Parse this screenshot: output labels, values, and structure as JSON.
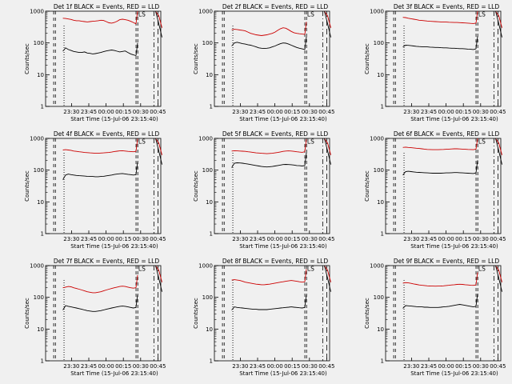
{
  "chart_data": [
    {
      "type": "line",
      "title": "Det 1f BLACK = Events, RED = LLD",
      "xlabel": "Start Time (15-Jul-06 23:15:40)",
      "ylabel": "Counts/sec",
      "x_ticks": [
        "23:30",
        "23:45",
        "00:00",
        "00:15",
        "00:30",
        "00:45"
      ],
      "y_ticks": [
        "1",
        "10",
        "100",
        "1000"
      ],
      "ylim": [
        1,
        1000
      ],
      "yscale": "log",
      "annotation": "LS",
      "series": [
        {
          "color": "#cc0000",
          "values": [
            600,
            590,
            570,
            550,
            520,
            500,
            500,
            480,
            470,
            460,
            470,
            480,
            490,
            500,
            520,
            510,
            470,
            430,
            420,
            440,
            480,
            540,
            560,
            540,
            520,
            480,
            440,
            400
          ]
        },
        {
          "color": "#000000",
          "values": [
            55,
            70,
            62,
            58,
            54,
            52,
            50,
            50,
            52,
            48,
            47,
            45,
            46,
            48,
            50,
            53,
            56,
            58,
            60,
            58,
            55,
            52,
            54,
            56,
            50,
            45,
            42,
            40
          ]
        }
      ]
    },
    {
      "type": "line",
      "title": "Det 2f BLACK = Events, RED = LLD",
      "xlabel": "Start Time (15-Jul-06 23:15:40)",
      "ylabel": "Counts/sec",
      "x_ticks": [
        "23:30",
        "23:45",
        "00:00",
        "00:15",
        "00:30",
        "00:45"
      ],
      "y_ticks": [
        "1",
        "10",
        "100",
        "1000"
      ],
      "ylim": [
        1,
        1000
      ],
      "yscale": "log",
      "annotation": "LS",
      "series": [
        {
          "color": "#cc0000",
          "values": [
            260,
            270,
            265,
            255,
            250,
            240,
            220,
            200,
            190,
            180,
            175,
            170,
            175,
            180,
            190,
            200,
            220,
            250,
            280,
            300,
            290,
            260,
            230,
            210,
            200,
            195,
            190,
            185
          ]
        },
        {
          "color": "#000000",
          "values": [
            80,
            100,
            105,
            100,
            95,
            92,
            88,
            85,
            80,
            75,
            70,
            68,
            67,
            68,
            70,
            75,
            80,
            88,
            95,
            100,
            98,
            92,
            85,
            78,
            72,
            68,
            65,
            62
          ]
        }
      ]
    },
    {
      "type": "line",
      "title": "Det 3f BLACK = Events, RED = LLD",
      "xlabel": "Start Time (15-Jul-06 23:15:40)",
      "ylabel": "Counts/sec",
      "x_ticks": [
        "23:30",
        "23:45",
        "00:00",
        "00:15",
        "00:30",
        "00:45"
      ],
      "y_ticks": [
        "1",
        "10",
        "100",
        "1000"
      ],
      "ylim": [
        1,
        1000
      ],
      "yscale": "log",
      "annotation": "LS",
      "series": [
        {
          "color": "#cc0000",
          "values": [
            640,
            630,
            600,
            580,
            560,
            540,
            520,
            510,
            500,
            490,
            480,
            475,
            470,
            465,
            460,
            460,
            455,
            450,
            445,
            440,
            440,
            435,
            430,
            425,
            420,
            415,
            410,
            420
          ]
        },
        {
          "color": "#000000",
          "values": [
            75,
            85,
            84,
            82,
            80,
            78,
            77,
            76,
            75,
            75,
            74,
            73,
            72,
            72,
            71,
            70,
            70,
            69,
            68,
            68,
            67,
            66,
            66,
            65,
            64,
            63,
            62,
            65
          ]
        }
      ]
    },
    {
      "type": "line",
      "title": "Det 4f BLACK = Events, RED = LLD",
      "xlabel": "Start Time (15-Jul-06 23:15:40)",
      "ylabel": "Counts/sec",
      "x_ticks": [
        "23:30",
        "23:45",
        "00:00",
        "00:15",
        "00:30",
        "00:45"
      ],
      "y_ticks": [
        "1",
        "10",
        "100",
        "1000"
      ],
      "ylim": [
        1,
        1000
      ],
      "yscale": "log",
      "annotation": "LS",
      "series": [
        {
          "color": "#cc0000",
          "values": [
            430,
            440,
            430,
            420,
            400,
            390,
            380,
            370,
            360,
            355,
            350,
            345,
            340,
            340,
            345,
            350,
            355,
            360,
            370,
            385,
            395,
            405,
            410,
            400,
            390,
            385,
            380,
            390
          ]
        },
        {
          "color": "#000000",
          "values": [
            50,
            70,
            75,
            72,
            70,
            68,
            67,
            66,
            65,
            64,
            63,
            63,
            62,
            62,
            63,
            64,
            66,
            68,
            70,
            73,
            75,
            77,
            78,
            76,
            74,
            72,
            70,
            72
          ]
        }
      ]
    },
    {
      "type": "line",
      "title": "Det 5f BLACK = Events, RED = LLD",
      "xlabel": "Start Time (15-Jul-06 23:15:40)",
      "ylabel": "Counts/sec",
      "x_ticks": [
        "23:30",
        "23:45",
        "00:00",
        "00:15",
        "00:30",
        "00:45"
      ],
      "y_ticks": [
        "1",
        "10",
        "100",
        "1000"
      ],
      "ylim": [
        1,
        1000
      ],
      "yscale": "log",
      "annotation": "LS",
      "series": [
        {
          "color": "#cc0000",
          "values": [
            400,
            410,
            405,
            400,
            395,
            390,
            380,
            370,
            360,
            350,
            345,
            340,
            335,
            330,
            335,
            340,
            350,
            360,
            375,
            390,
            400,
            405,
            400,
            390,
            380,
            370,
            365,
            380
          ]
        },
        {
          "color": "#000000",
          "values": [
            120,
            165,
            170,
            168,
            165,
            160,
            155,
            150,
            145,
            140,
            135,
            130,
            128,
            126,
            128,
            130,
            135,
            140,
            145,
            150,
            152,
            150,
            148,
            145,
            140,
            138,
            135,
            140
          ]
        }
      ]
    },
    {
      "type": "line",
      "title": "Det 6f BLACK = Events, RED = LLD",
      "xlabel": "Start Time (15-Jul-06 23:15:40)",
      "ylabel": "Counts/sec",
      "x_ticks": [
        "23:30",
        "23:45",
        "00:00",
        "00:15",
        "00:30",
        "00:45"
      ],
      "y_ticks": [
        "1",
        "10",
        "100",
        "1000"
      ],
      "ylim": [
        1,
        1000
      ],
      "yscale": "log",
      "annotation": "LS",
      "series": [
        {
          "color": "#cc0000",
          "values": [
            520,
            530,
            520,
            510,
            500,
            490,
            480,
            470,
            460,
            450,
            445,
            440,
            440,
            440,
            445,
            450,
            455,
            460,
            465,
            470,
            470,
            465,
            460,
            455,
            450,
            445,
            440,
            460
          ]
        },
        {
          "color": "#000000",
          "values": [
            70,
            90,
            92,
            90,
            88,
            86,
            85,
            84,
            83,
            82,
            81,
            80,
            80,
            80,
            80,
            81,
            82,
            82,
            83,
            84,
            84,
            83,
            82,
            81,
            80,
            79,
            78,
            82
          ]
        }
      ]
    },
    {
      "type": "line",
      "title": "Det 7f BLACK = Events, RED = LLD",
      "xlabel": "Start Time (15-Jul-06 23:15:40)",
      "ylabel": "Counts/sec",
      "x_ticks": [
        "23:30",
        "23:45",
        "00:00",
        "00:15",
        "00:30",
        "00:45"
      ],
      "y_ticks": [
        "1",
        "10",
        "100",
        "1000"
      ],
      "ylim": [
        1,
        1000
      ],
      "yscale": "log",
      "annotation": "LS",
      "series": [
        {
          "color": "#cc0000",
          "values": [
            200,
            210,
            220,
            215,
            200,
            190,
            180,
            170,
            160,
            150,
            145,
            140,
            140,
            145,
            150,
            160,
            170,
            180,
            190,
            200,
            210,
            220,
            225,
            220,
            210,
            200,
            195,
            200
          ]
        },
        {
          "color": "#000000",
          "values": [
            40,
            55,
            52,
            50,
            48,
            46,
            44,
            42,
            40,
            38,
            37,
            36,
            36,
            37,
            38,
            40,
            42,
            44,
            46,
            48,
            50,
            52,
            53,
            52,
            50,
            48,
            46,
            48
          ]
        }
      ]
    },
    {
      "type": "line",
      "title": "Det 8f BLACK = Events, RED = LLD",
      "xlabel": "Start Time (15-Jul-06 23:15:40)",
      "ylabel": "Counts/sec",
      "x_ticks": [
        "23:30",
        "23:45",
        "00:00",
        "00:15",
        "00:30",
        "00:45"
      ],
      "y_ticks": [
        "1",
        "10",
        "100",
        "1000"
      ],
      "ylim": [
        1,
        1000
      ],
      "yscale": "log",
      "annotation": "LS",
      "series": [
        {
          "color": "#cc0000",
          "values": [
            350,
            360,
            350,
            340,
            320,
            300,
            290,
            280,
            270,
            260,
            255,
            250,
            250,
            255,
            260,
            270,
            280,
            290,
            300,
            310,
            320,
            330,
            340,
            330,
            320,
            310,
            300,
            310
          ]
        },
        {
          "color": "#000000",
          "values": [
            40,
            50,
            48,
            47,
            46,
            45,
            44,
            43,
            42,
            42,
            41,
            41,
            41,
            41,
            42,
            43,
            44,
            45,
            46,
            47,
            48,
            49,
            50,
            49,
            48,
            47,
            46,
            48
          ]
        }
      ]
    },
    {
      "type": "line",
      "title": "Det 9f BLACK = Events, RED = LLD",
      "xlabel": "Start Time (15-Jul-06 23:15:40)",
      "ylabel": "Counts/sec",
      "x_ticks": [
        "23:30",
        "23:45",
        "00:00",
        "00:15",
        "00:30",
        "00:45"
      ],
      "y_ticks": [
        "1",
        "10",
        "100",
        "1000"
      ],
      "ylim": [
        1,
        1000
      ],
      "yscale": "log",
      "annotation": "LS",
      "series": [
        {
          "color": "#cc0000",
          "values": [
            280,
            290,
            285,
            275,
            265,
            255,
            245,
            240,
            235,
            230,
            228,
            226,
            225,
            226,
            228,
            230,
            235,
            240,
            245,
            250,
            255,
            258,
            255,
            250,
            245,
            240,
            238,
            245
          ]
        },
        {
          "color": "#000000",
          "values": [
            45,
            55,
            54,
            53,
            52,
            51,
            50,
            50,
            49,
            49,
            48,
            48,
            48,
            48,
            49,
            50,
            51,
            52,
            54,
            56,
            58,
            60,
            58,
            56,
            54,
            52,
            50,
            52
          ]
        }
      ]
    }
  ]
}
